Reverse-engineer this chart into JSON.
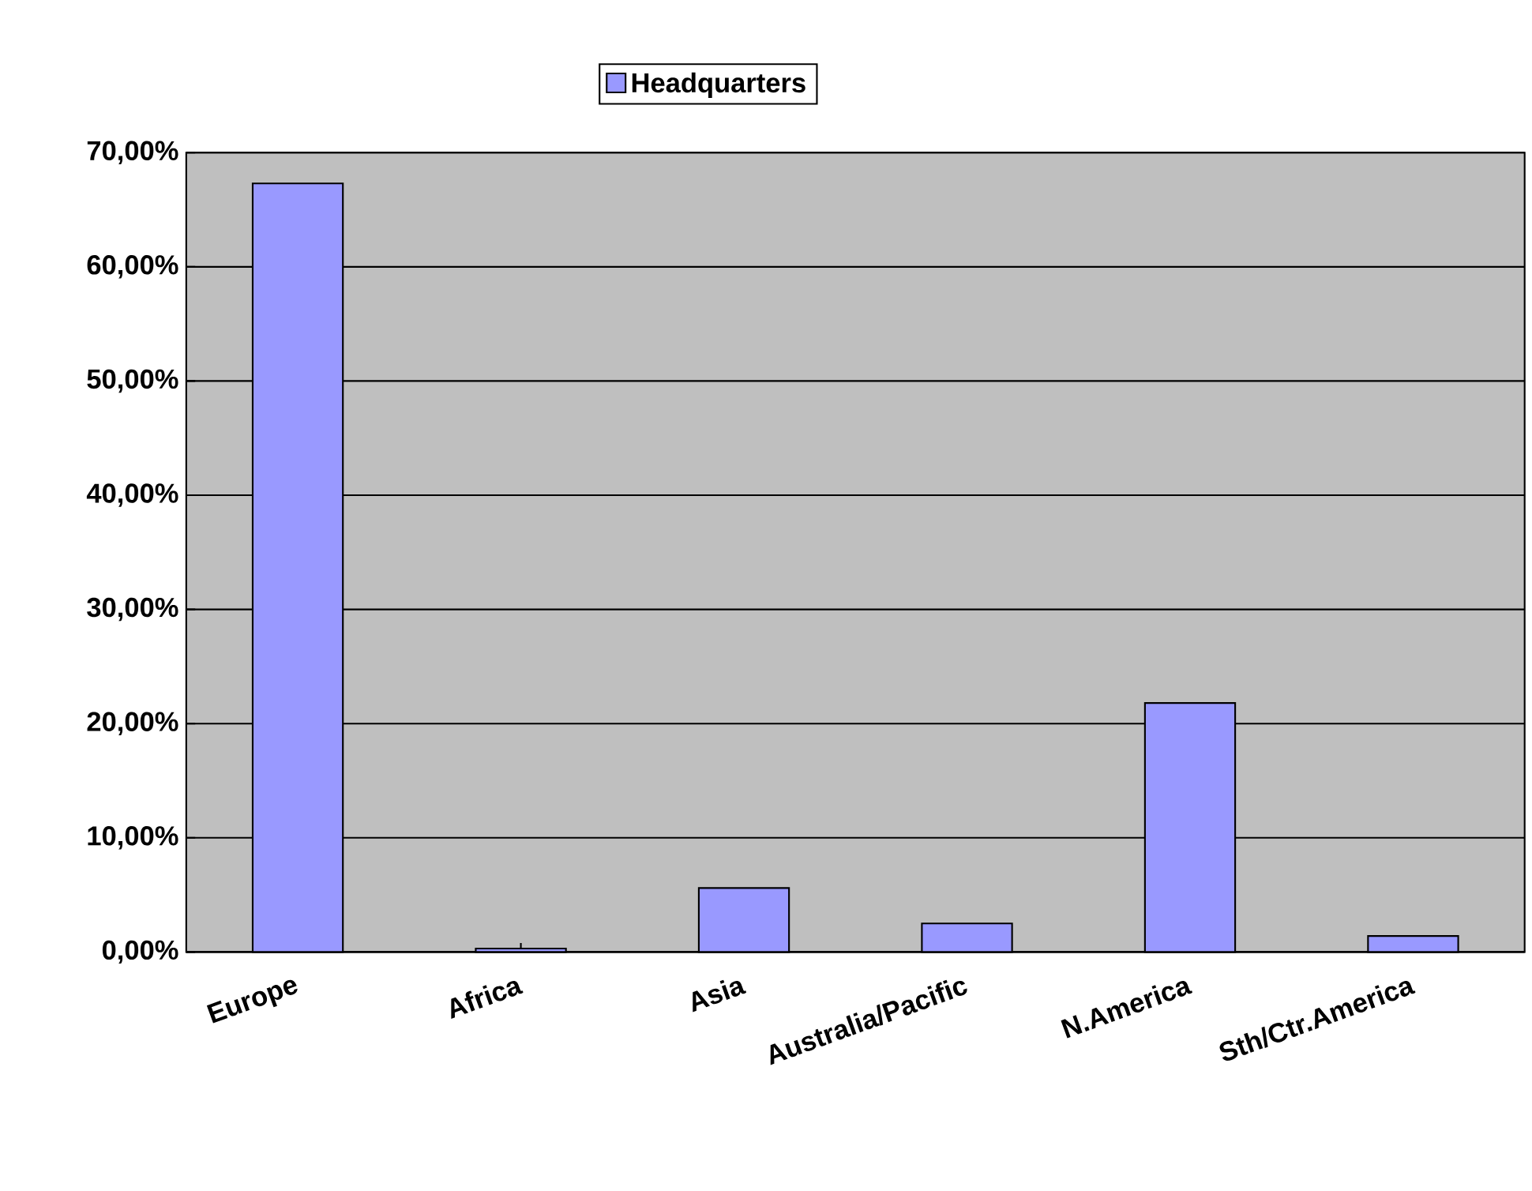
{
  "chart_data": {
    "type": "bar",
    "categories": [
      "Europe",
      "Africa",
      "Asia",
      "Australia/Pacific",
      "N.America",
      "Sth/Ctr.America"
    ],
    "series": [
      {
        "name": "Headquarters",
        "color": "#9999ff",
        "values": [
          67.3,
          0.3,
          5.6,
          2.5,
          21.8,
          1.4
        ]
      }
    ],
    "ylim": [
      0,
      70
    ],
    "yticks": [
      {
        "value": 0,
        "label": "0,00%"
      },
      {
        "value": 10,
        "label": "10,00%"
      },
      {
        "value": 20,
        "label": "20,00%"
      },
      {
        "value": 30,
        "label": "30,00%"
      },
      {
        "value": 40,
        "label": "40,00%"
      },
      {
        "value": 50,
        "label": "50,00%"
      },
      {
        "value": 60,
        "label": "60,00%"
      },
      {
        "value": 70,
        "label": "70,00%"
      }
    ],
    "grid": "y",
    "legend": "top"
  }
}
